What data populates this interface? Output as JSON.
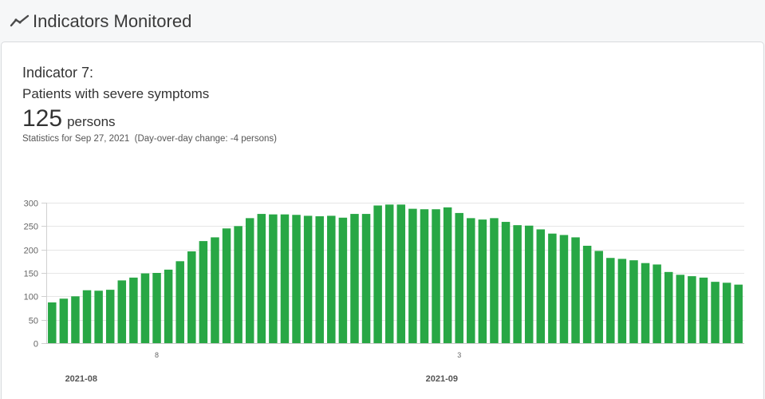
{
  "header": {
    "title": "Indicators Monitored",
    "icon": "chart-line-icon"
  },
  "indicator": {
    "label": "Indicator 7:",
    "name": "Patients with severe symptoms",
    "value": "125",
    "unit": "persons",
    "stats_note": "Statistics for Sep 27, 2021  (Day-over-day change: -4 persons)"
  },
  "colors": {
    "bar": "#28a745"
  },
  "chart_data": {
    "type": "bar",
    "x": [
      "2021-07-30",
      "2021-07-31",
      "2021-08-01",
      "2021-08-02",
      "2021-08-03",
      "2021-08-04",
      "2021-08-05",
      "2021-08-06",
      "2021-08-07",
      "2021-08-08",
      "2021-08-09",
      "2021-08-10",
      "2021-08-11",
      "2021-08-12",
      "2021-08-13",
      "2021-08-14",
      "2021-08-15",
      "2021-08-16",
      "2021-08-17",
      "2021-08-18",
      "2021-08-19",
      "2021-08-20",
      "2021-08-21",
      "2021-08-22",
      "2021-08-23",
      "2021-08-24",
      "2021-08-25",
      "2021-08-26",
      "2021-08-27",
      "2021-08-28",
      "2021-08-29",
      "2021-08-30",
      "2021-08-31",
      "2021-09-01",
      "2021-09-02",
      "2021-09-03",
      "2021-09-04",
      "2021-09-05",
      "2021-09-06",
      "2021-09-07",
      "2021-09-08",
      "2021-09-09",
      "2021-09-10",
      "2021-09-11",
      "2021-09-12",
      "2021-09-13",
      "2021-09-14",
      "2021-09-15",
      "2021-09-16",
      "2021-09-17",
      "2021-09-18",
      "2021-09-19",
      "2021-09-20",
      "2021-09-21",
      "2021-09-22",
      "2021-09-23",
      "2021-09-24",
      "2021-09-25",
      "2021-09-26",
      "2021-09-27"
    ],
    "values": [
      87,
      95,
      100,
      113,
      112,
      114,
      134,
      140,
      149,
      150,
      157,
      175,
      196,
      218,
      226,
      245,
      250,
      267,
      276,
      275,
      275,
      274,
      272,
      271,
      272,
      268,
      276,
      276,
      294,
      296,
      296,
      287,
      286,
      286,
      290,
      278,
      267,
      264,
      267,
      259,
      252,
      251,
      243,
      234,
      231,
      226,
      208,
      197,
      182,
      180,
      177,
      171,
      168,
      152,
      146,
      143,
      140,
      131,
      129,
      125
    ],
    "ylim": [
      0,
      300
    ],
    "yticks": [
      0,
      50,
      100,
      150,
      200,
      250,
      300
    ],
    "xticks": [
      {
        "date": "2021-08-08",
        "label": "8"
      },
      {
        "date": "2021-09-03",
        "label": "3"
      }
    ],
    "month_labels": [
      {
        "date": "2021-08-01",
        "label": "2021-08"
      },
      {
        "date": "2021-09-01",
        "label": "2021-09"
      }
    ],
    "grid": true,
    "legend": "none"
  }
}
